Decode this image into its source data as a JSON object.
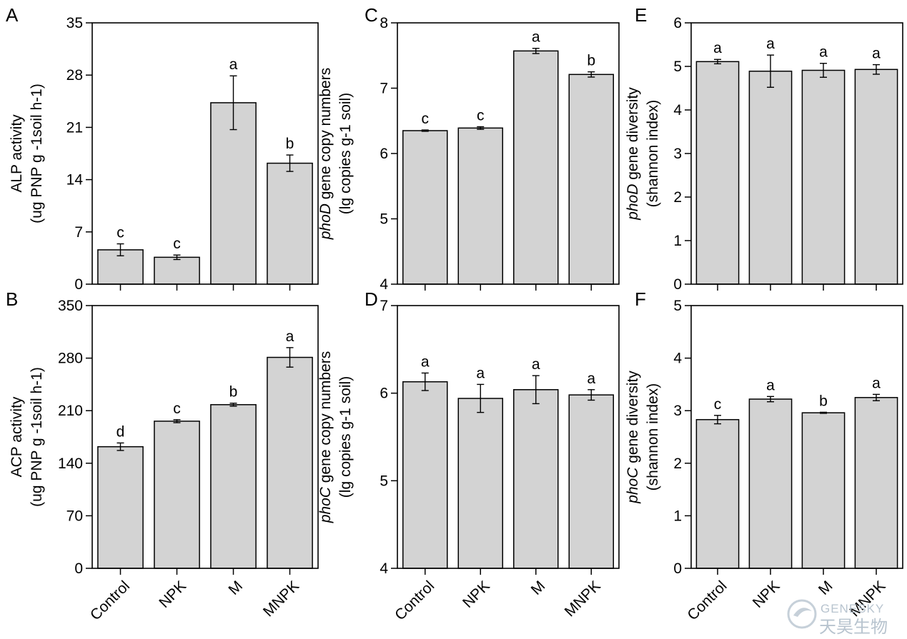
{
  "categories": [
    "Control",
    "NPK",
    "M",
    "MNPK"
  ],
  "colors": {
    "bar_fill": "#d3d3d3",
    "stroke": "#000000"
  },
  "watermark": {
    "text_en": "GENESKY",
    "text_cn": "天昊生物",
    "icon": "genesky-logo-icon"
  },
  "chart_data": [
    {
      "panel": "A",
      "type": "bar",
      "ylabel": "ALP activity",
      "ylabel_unit": "(ug PNP g -1soil h-1)",
      "ylim": [
        0,
        35
      ],
      "yticks": [
        "0",
        "7",
        "14",
        "21",
        "28",
        "35"
      ],
      "values": [
        4.6,
        3.6,
        24.3,
        16.2
      ],
      "errors": [
        0.8,
        0.3,
        3.6,
        1.1
      ],
      "letters": [
        "c",
        "c",
        "a",
        "b"
      ]
    },
    {
      "panel": "B",
      "type": "bar",
      "ylabel": "ACP activity",
      "ylabel_unit": "(ug PNP g -1soil h-1)",
      "ylim": [
        0,
        350
      ],
      "yticks": [
        "0",
        "70",
        "140",
        "210",
        "280",
        "350"
      ],
      "values": [
        162,
        196,
        218,
        281
      ],
      "errors": [
        5,
        2,
        2,
        13
      ],
      "letters": [
        "d",
        "c",
        "b",
        "a"
      ]
    },
    {
      "panel": "C",
      "type": "bar",
      "ylabel_gene": "phoD",
      "ylabel": " gene copy numbers",
      "ylabel_unit": "(lg copies g-1 soil)",
      "ylim": [
        4,
        8
      ],
      "yticks": [
        "4",
        "5",
        "6",
        "7",
        "8"
      ],
      "values": [
        6.35,
        6.39,
        7.57,
        7.21
      ],
      "errors": [
        0.01,
        0.02,
        0.04,
        0.04
      ],
      "letters": [
        "c",
        "c",
        "a",
        "b"
      ]
    },
    {
      "panel": "D",
      "type": "bar",
      "ylabel_gene": "phoC",
      "ylabel": " gene copy numbers",
      "ylabel_unit": "(lg copies g-1 soil)",
      "ylim": [
        4,
        7
      ],
      "yticks": [
        "4",
        "5",
        "6",
        "7"
      ],
      "values": [
        6.13,
        5.94,
        6.04,
        5.98
      ],
      "errors": [
        0.1,
        0.16,
        0.16,
        0.06
      ],
      "letters": [
        "a",
        "a",
        "a",
        "a"
      ]
    },
    {
      "panel": "E",
      "type": "bar",
      "ylabel_gene": "phoD",
      "ylabel": " gene diversity",
      "ylabel_unit": "(shannon index)",
      "ylim": [
        0,
        6
      ],
      "yticks": [
        "0",
        "1",
        "2",
        "3",
        "4",
        "5",
        "6"
      ],
      "values": [
        5.11,
        4.89,
        4.91,
        4.93
      ],
      "errors": [
        0.05,
        0.37,
        0.16,
        0.11
      ],
      "letters": [
        "a",
        "a",
        "a",
        "a"
      ]
    },
    {
      "panel": "F",
      "type": "bar",
      "ylabel_gene": "phoC",
      "ylabel": " gene diversity",
      "ylabel_unit": "(shannon index)",
      "ylim": [
        0,
        5
      ],
      "yticks": [
        "0",
        "1",
        "2",
        "3",
        "4",
        "5"
      ],
      "values": [
        2.83,
        3.22,
        2.96,
        3.25
      ],
      "errors": [
        0.08,
        0.05,
        0.01,
        0.06
      ],
      "letters": [
        "c",
        "a",
        "b",
        "a"
      ]
    }
  ]
}
